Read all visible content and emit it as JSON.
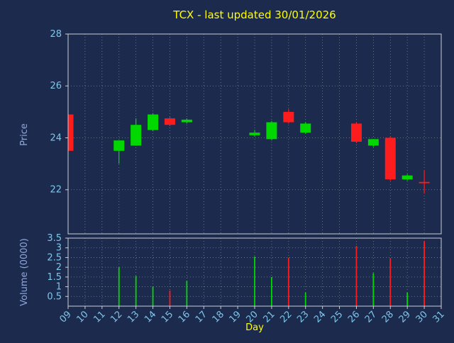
{
  "title": "TCX - last updated 30/01/2026",
  "colors": {
    "background": "#1c2a4d",
    "title": "#ffff00",
    "xlabel": "#ffff00",
    "axis_label": "#8fa8dc",
    "tick_label": "#7fc6e8",
    "frame": "#c8cdd6",
    "grid": "#aab4c4",
    "up": "#00d800",
    "down": "#ff1c1c"
  },
  "chart_data": {
    "type": "candlestick",
    "title": "TCX - last updated 30/01/2026",
    "xlabel": "Day",
    "ylabel_price": "Price",
    "ylabel_volume": "Volume (0000)",
    "price_range": [
      20.3,
      28
    ],
    "volume_range": [
      0,
      3.5
    ],
    "x_range": [
      9,
      31
    ],
    "grid": "dotted",
    "x_ticks": [
      {
        "day": 9,
        "label": "09"
      },
      {
        "day": 10,
        "label": "10"
      },
      {
        "day": 11,
        "label": "11"
      },
      {
        "day": 12,
        "label": "12"
      },
      {
        "day": 13,
        "label": "13"
      },
      {
        "day": 14,
        "label": "14"
      },
      {
        "day": 15,
        "label": "15"
      },
      {
        "day": 16,
        "label": "16"
      },
      {
        "day": 17,
        "label": "17"
      },
      {
        "day": 18,
        "label": "18"
      },
      {
        "day": 19,
        "label": "19"
      },
      {
        "day": 20,
        "label": "20"
      },
      {
        "day": 21,
        "label": "21"
      },
      {
        "day": 22,
        "label": "22"
      },
      {
        "day": 23,
        "label": "23"
      },
      {
        "day": 24,
        "label": "24"
      },
      {
        "day": 25,
        "label": "25"
      },
      {
        "day": 26,
        "label": "26"
      },
      {
        "day": 27,
        "label": "27"
      },
      {
        "day": 28,
        "label": "28"
      },
      {
        "day": 29,
        "label": "29"
      },
      {
        "day": 30,
        "label": "30"
      },
      {
        "day": 31,
        "label": "31"
      }
    ],
    "price_ticks": [
      {
        "v": 28,
        "label": "28"
      },
      {
        "v": 26,
        "label": "26"
      },
      {
        "v": 24,
        "label": "24"
      },
      {
        "v": 22,
        "label": "22"
      }
    ],
    "volume_ticks": [
      {
        "v": 3.5,
        "label": "3.5"
      },
      {
        "v": 3.0,
        "label": "3"
      },
      {
        "v": 2.5,
        "label": "2.5"
      },
      {
        "v": 2.0,
        "label": "2"
      },
      {
        "v": 1.5,
        "label": "1.5"
      },
      {
        "v": 1.0,
        "label": "1"
      },
      {
        "v": 0.5,
        "label": "0.5"
      }
    ],
    "candles": [
      {
        "day": 9,
        "open": 24.9,
        "high": 24.95,
        "low": 23.45,
        "close": 23.5,
        "dir": "down",
        "volume": null
      },
      {
        "day": 12,
        "open": 23.5,
        "high": 23.9,
        "low": 23.0,
        "close": 23.9,
        "dir": "up",
        "volume": 2.0
      },
      {
        "day": 13,
        "open": 23.7,
        "high": 24.75,
        "low": 23.7,
        "close": 24.5,
        "dir": "up",
        "volume": 1.55
      },
      {
        "day": 14,
        "open": 24.3,
        "high": 24.95,
        "low": 24.25,
        "close": 24.9,
        "dir": "up",
        "volume": 1.0
      },
      {
        "day": 15,
        "open": 24.75,
        "high": 24.8,
        "low": 24.45,
        "close": 24.5,
        "dir": "down",
        "volume": 0.8
      },
      {
        "day": 16,
        "open": 24.6,
        "high": 24.75,
        "low": 24.55,
        "close": 24.7,
        "dir": "up",
        "volume": 1.3
      },
      {
        "day": 20,
        "open": 24.1,
        "high": 24.3,
        "low": 24.05,
        "close": 24.2,
        "dir": "up",
        "volume": 2.55
      },
      {
        "day": 21,
        "open": 23.95,
        "high": 24.65,
        "low": 23.9,
        "close": 24.6,
        "dir": "up",
        "volume": 1.5
      },
      {
        "day": 22,
        "open": 25.0,
        "high": 25.1,
        "low": 24.55,
        "close": 24.6,
        "dir": "down",
        "volume": 2.5
      },
      {
        "day": 23,
        "open": 24.2,
        "high": 24.6,
        "low": 24.15,
        "close": 24.55,
        "dir": "up",
        "volume": 0.7
      },
      {
        "day": 26,
        "open": 24.55,
        "high": 24.6,
        "low": 23.8,
        "close": 23.85,
        "dir": "down",
        "volume": 3.1
      },
      {
        "day": 27,
        "open": 23.7,
        "high": 23.95,
        "low": 23.65,
        "close": 23.95,
        "dir": "up",
        "volume": 1.7
      },
      {
        "day": 28,
        "open": 24.0,
        "high": 24.05,
        "low": 22.35,
        "close": 22.4,
        "dir": "down",
        "volume": 2.45
      },
      {
        "day": 29,
        "open": 22.4,
        "high": 22.6,
        "low": 22.35,
        "close": 22.55,
        "dir": "up",
        "volume": 0.7
      },
      {
        "day": 30,
        "open": 22.3,
        "high": 22.75,
        "low": 21.85,
        "close": 22.3,
        "dir": "down",
        "volume": 3.35
      }
    ]
  }
}
